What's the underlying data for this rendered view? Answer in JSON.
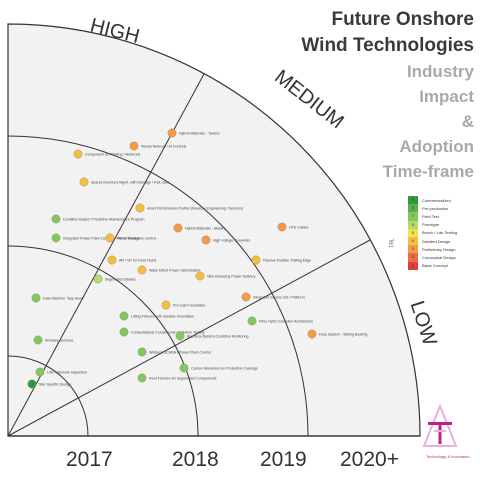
{
  "title": {
    "line1": "Future Onshore",
    "line2": "Wind Technologies",
    "line3": "Industry",
    "line4": "Impact",
    "line5": "&",
    "line6": "Adoption",
    "line7": "Time-frame"
  },
  "impact_levels": [
    "HIGH",
    "MEDIUM",
    "LOW"
  ],
  "timeframes": [
    "2017",
    "2018",
    "2019",
    "2020+"
  ],
  "legend": {
    "axis_label": "TRL",
    "items": [
      {
        "level": "9",
        "label": "Commercialized",
        "color": "#2e9a3e"
      },
      {
        "level": "8",
        "label": "Pre-production",
        "color": "#57b04a"
      },
      {
        "level": "7",
        "label": "Field Test",
        "color": "#86c75b"
      },
      {
        "level": "6",
        "label": "Prototype",
        "color": "#b6d96a"
      },
      {
        "level": "5",
        "label": "Bench / Lab Testing",
        "color": "#f2e24a"
      },
      {
        "level": "4",
        "label": "Detailed Design",
        "color": "#f6bd3f"
      },
      {
        "level": "3",
        "label": "Preliminary Design",
        "color": "#f59a45"
      },
      {
        "level": "2",
        "label": "Conceptual Design",
        "color": "#ee6a4a"
      },
      {
        "level": "1",
        "label": "Basic Concept",
        "color": "#e43d3d"
      }
    ]
  },
  "technologies": [
    {
      "label": "Neural Network / AI Controls",
      "trl": "3"
    },
    {
      "label": "Hybrid Materials - Towers",
      "trl": "3"
    },
    {
      "label": "Component 3D Printing / Metarods",
      "trl": "4"
    },
    {
      "label": "Spares Inventory Mgmt. with Damage / RUL data",
      "trl": "4"
    },
    {
      "label": "Asset Performance Profiler (Reverse Engineering / Sensors)",
      "trl": "4"
    },
    {
      "label": "Hybrid Materials - Blades",
      "trl": "3"
    },
    {
      "label": "High Voltage Converter",
      "trl": "3"
    },
    {
      "label": "HTS Cables",
      "trl": "3"
    },
    {
      "label": "Condition Based / Predictive Maintenance Program",
      "trl": "7"
    },
    {
      "label": "Integrated Power Plant Controls + PE & Storage",
      "trl": "7"
    },
    {
      "label": "Model Predictive Control",
      "trl": "4"
    },
    {
      "label": "AR / VR for Field Techs",
      "trl": "4"
    },
    {
      "label": "Wake Effect Power Optimization",
      "trl": "4"
    },
    {
      "label": "Segmented Blades",
      "trl": "6"
    },
    {
      "label": "Vibe Reducing Power Delivery",
      "trl": "4"
    },
    {
      "label": "Passive Positive Trailing Edge",
      "trl": "4"
    },
    {
      "label": "Pre-cast Foundation",
      "trl": "4"
    },
    {
      "label": "Integrated Service i2S / Platform",
      "trl": "3"
    },
    {
      "label": "Fibre Optic Controller Architecture",
      "trl": "7"
    },
    {
      "label": "Fuse System - Sliding Bearing",
      "trl": "3"
    },
    {
      "label": "Data Machine \"App Store\"",
      "trl": "7"
    },
    {
      "label": "Lifting Fixtures with Variable Orientation",
      "trl": "7"
    },
    {
      "label": "Computational Components Validation Testing",
      "trl": "7"
    },
    {
      "label": "Electrical System Condition Monitoring",
      "trl": "7"
    },
    {
      "label": "Ancillary Services",
      "trl": "7"
    },
    {
      "label": "Wireless SCADA / Power Plant Control",
      "trl": "7"
    },
    {
      "label": "Carbon Nanotube Ice Protection Coatings",
      "trl": "7"
    },
    {
      "label": "UAV / Remote Inspection",
      "trl": "7"
    },
    {
      "label": "Field Fixtures for Segmented Components",
      "trl": "7"
    },
    {
      "label": "Site Specific Design",
      "trl": "9"
    }
  ],
  "watermark": "Technology & Innovation"
}
